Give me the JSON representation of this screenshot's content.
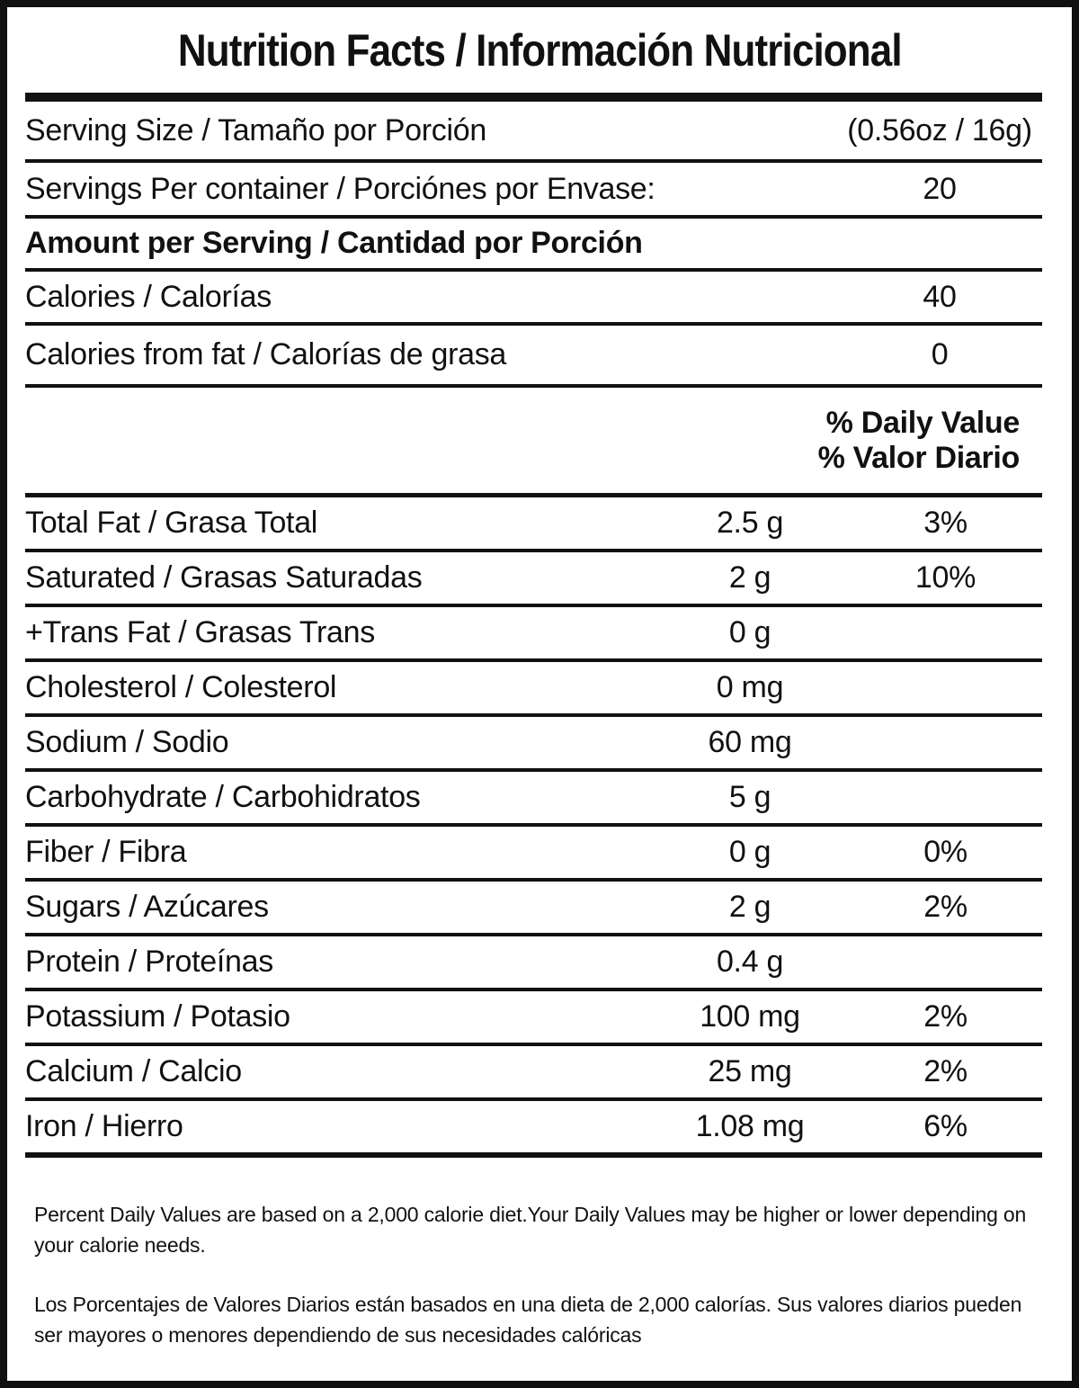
{
  "colors": {
    "ink": "#111111",
    "paper": "#ffffff"
  },
  "label": {
    "title": "Nutrition Facts / Información Nutricional",
    "serving_rows": [
      {
        "label": "Serving Size / Tamaño por Porción",
        "value": "(0.56oz / 16g)"
      },
      {
        "label": "Servings Per container / Porciónes por Envase:",
        "value": "20"
      }
    ],
    "amount_per_serving_header": "Amount per Serving / Cantidad por Porción",
    "calorie_rows": [
      {
        "label": "Calories / Calorías",
        "value": "40"
      },
      {
        "label": "Calories from fat / Calorías de grasa",
        "value": "0"
      }
    ],
    "daily_value_header": {
      "line1": "% Daily Value",
      "line2": "% Valor Diario"
    },
    "nutrient_rows": [
      {
        "label": "Total Fat / Grasa Total",
        "amount": "2.5 g",
        "dv": "3%"
      },
      {
        "label": "Saturated / Grasas Saturadas",
        "amount": "2 g",
        "dv": "10%"
      },
      {
        "label": "+Trans Fat / Grasas Trans",
        "amount": "0 g",
        "dv": ""
      },
      {
        "label": "Cholesterol / Colesterol",
        "amount": "0 mg",
        "dv": ""
      },
      {
        "label": "Sodium / Sodio",
        "amount": "60 mg",
        "dv": ""
      },
      {
        "label": "Carbohydrate / Carbohidratos",
        "amount": "5 g",
        "dv": ""
      },
      {
        "label": "Fiber / Fibra",
        "amount": "0 g",
        "dv": "0%"
      },
      {
        "label": "Sugars / Azúcares",
        "amount": "2 g",
        "dv": "2%"
      },
      {
        "label": "Protein / Proteínas",
        "amount": "0.4 g",
        "dv": ""
      },
      {
        "label": "Potassium / Potasio",
        "amount": "100 mg",
        "dv": "2%"
      },
      {
        "label": "Calcium / Calcio",
        "amount": "25 mg",
        "dv": "2%"
      },
      {
        "label": "Iron / Hierro",
        "amount": "1.08 mg",
        "dv": "6%"
      }
    ],
    "footnotes": {
      "english": "Percent Daily Values are based on a 2,000 calorie diet.Your Daily Values may be higher or lower depending on your calorie needs.",
      "spanish": "Los Porcentajes de Valores Diarios están basados en una dieta de 2,000 calorías. Sus valores diarios pueden ser mayores o menores dependiendo de sus necesidades calóricas"
    }
  }
}
